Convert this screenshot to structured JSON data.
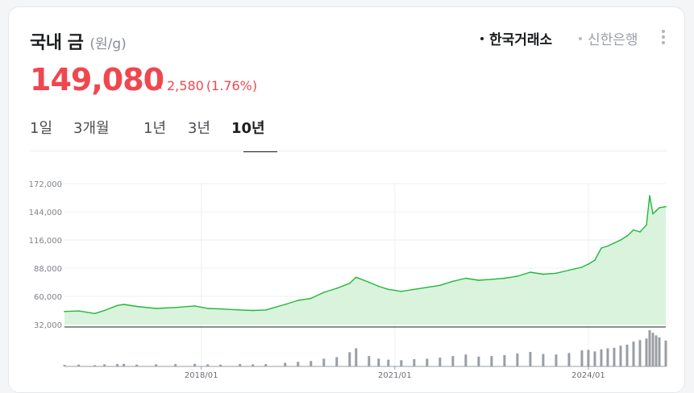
{
  "header": {
    "title": "국내 금",
    "unit": "(원/g)",
    "sources": [
      "한국거래소",
      "신한은행"
    ],
    "active_source": "한국거래소"
  },
  "price": {
    "value": "149,080",
    "change": "2,580",
    "change_pct": "(1.76%)",
    "direction": "up"
  },
  "tabs": [
    "1일",
    "3개월",
    "1년",
    "3년",
    "10년"
  ],
  "active_tab": "10년",
  "colors": {
    "up": "#f0474f",
    "line": "#21b83a",
    "fill": "#d9f3dc",
    "text": "#1b1d1f"
  },
  "icons": {
    "more": "more-vertical-icon",
    "up": "triangle-up-icon"
  },
  "chart_data": {
    "type": "area",
    "xlabels": [
      "2018/01",
      "2021/01",
      "2024/01"
    ],
    "ylabels": [
      "172,000",
      "144,000",
      "116,000",
      "88,000",
      "60,000",
      "32,000"
    ],
    "ylim": [
      32000,
      172000
    ],
    "xlim": [
      2015.88,
      2025.2
    ],
    "grid": true,
    "x": [
      2015.88,
      2016.1,
      2016.35,
      2016.5,
      2016.7,
      2016.8,
      2017.0,
      2017.3,
      2017.6,
      2017.9,
      2018.1,
      2018.3,
      2018.6,
      2018.8,
      2019.0,
      2019.3,
      2019.5,
      2019.7,
      2019.9,
      2020.1,
      2020.3,
      2020.4,
      2020.6,
      2020.75,
      2020.9,
      2021.1,
      2021.3,
      2021.5,
      2021.7,
      2021.9,
      2022.1,
      2022.3,
      2022.5,
      2022.7,
      2022.9,
      2023.1,
      2023.3,
      2023.5,
      2023.7,
      2023.9,
      2024.0,
      2024.1,
      2024.2,
      2024.3,
      2024.4,
      2024.5,
      2024.6,
      2024.7,
      2024.8,
      2024.9,
      2024.95,
      2025.0,
      2025.05,
      2025.1,
      2025.2
    ],
    "series": [
      {
        "values": [
          45000,
          45500,
          43000,
          46000,
          51000,
          52000,
          50000,
          48000,
          49000,
          50500,
          48000,
          47500,
          46500,
          46000,
          46500,
          52000,
          56000,
          58000,
          64000,
          68000,
          73000,
          79000,
          74000,
          70000,
          67000,
          65000,
          67000,
          69000,
          71000,
          75000,
          78000,
          76000,
          77000,
          78000,
          80000,
          84000,
          82000,
          83000,
          86000,
          89000,
          92000,
          96000,
          108000,
          110000,
          113000,
          116000,
          120000,
          126000,
          124000,
          131000,
          160000,
          142000,
          145000,
          148000,
          149080
        ]
      }
    ],
    "volume": [
      6,
      7,
      5,
      8,
      9,
      10,
      7,
      8,
      9,
      10,
      8,
      7,
      9,
      8,
      9,
      14,
      18,
      21,
      30,
      36,
      55,
      70,
      40,
      30,
      26,
      24,
      28,
      30,
      34,
      40,
      46,
      38,
      40,
      44,
      50,
      56,
      48,
      46,
      52,
      62,
      64,
      58,
      66,
      70,
      72,
      80,
      84,
      96,
      102,
      108,
      140,
      130,
      120,
      112,
      100
    ]
  }
}
